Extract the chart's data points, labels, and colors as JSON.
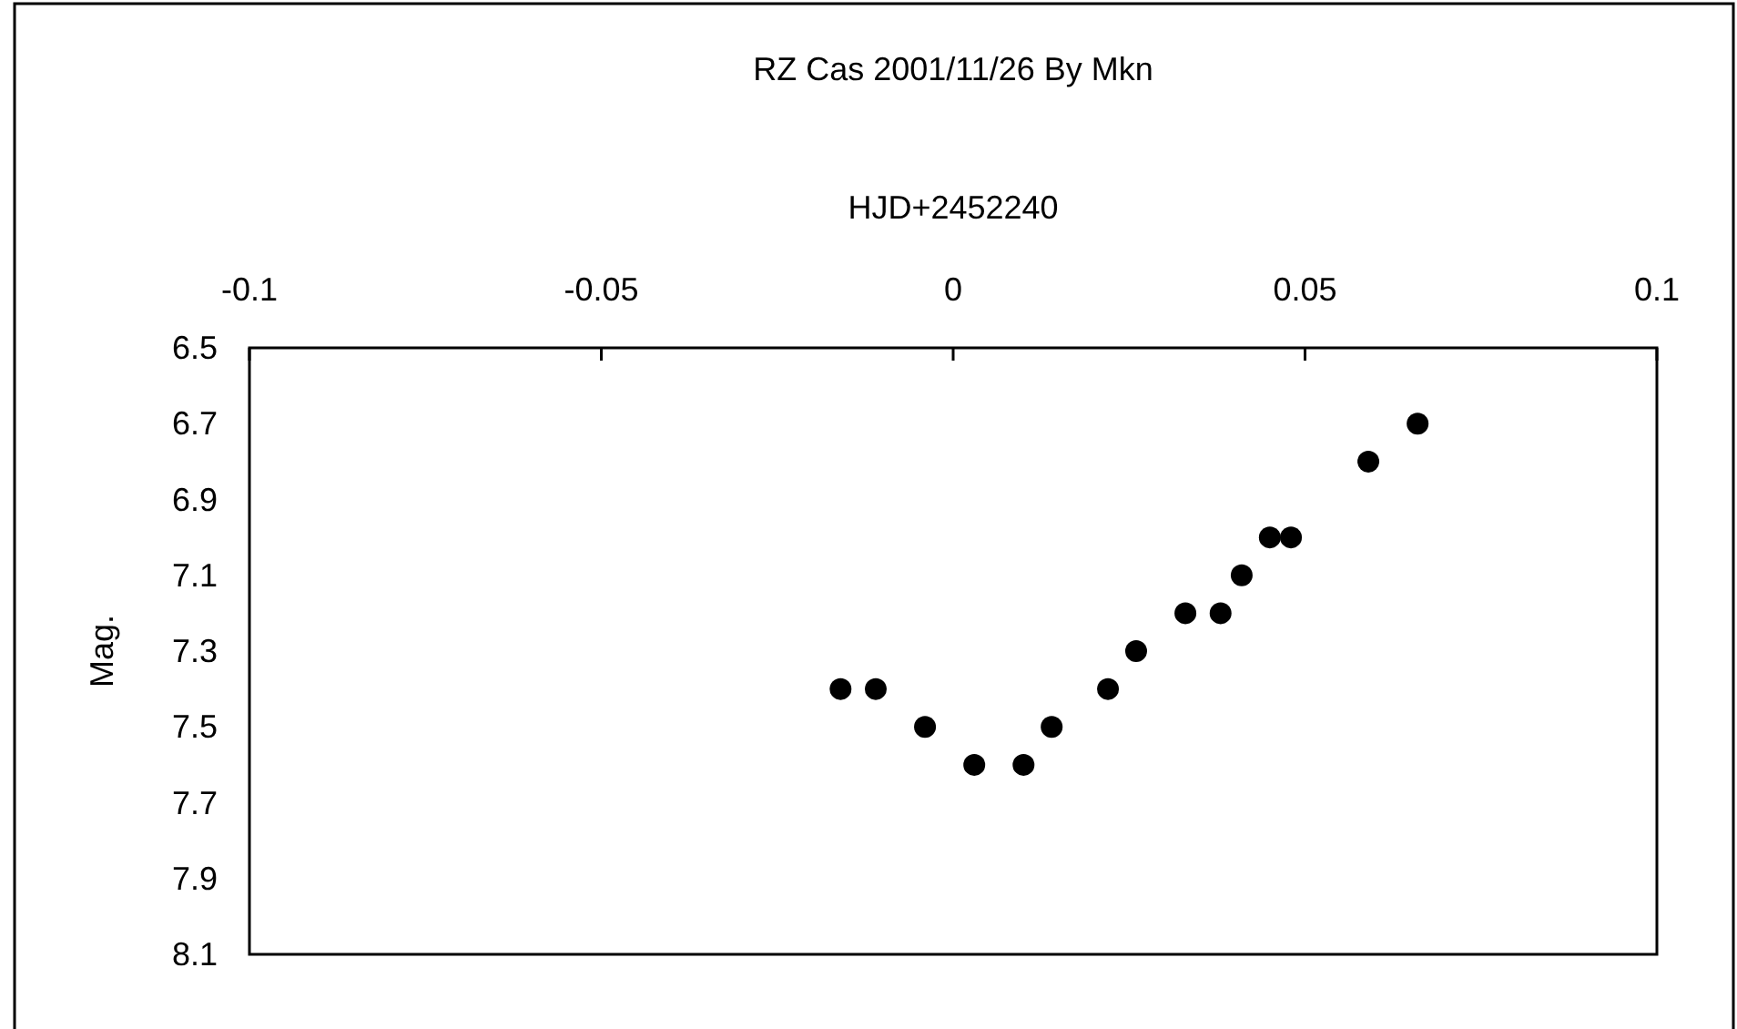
{
  "chart_data": {
    "type": "scatter",
    "title": "RZ Cas 2001/11/26 By Mkn",
    "xlabel": "HJD+2452240",
    "ylabel": "Mag.",
    "x": [
      -0.016,
      -0.011,
      -0.004,
      0.003,
      0.01,
      0.014,
      0.022,
      0.026,
      0.033,
      0.038,
      0.041,
      0.045,
      0.048,
      0.059,
      0.066
    ],
    "series": [
      {
        "color": "#000000",
        "values": [
          7.4,
          7.4,
          7.5,
          7.6,
          7.6,
          7.5,
          7.4,
          7.3,
          7.2,
          7.2,
          7.1,
          7.0,
          7.0,
          6.8,
          6.7
        ]
      }
    ],
    "xlim": [
      -0.1,
      0.1
    ],
    "xticks": [
      -0.1,
      -0.05,
      0,
      0.05,
      0.1
    ],
    "ylim": [
      8.1,
      6.5
    ],
    "yticks": [
      6.5,
      6.7,
      6.9,
      7.1,
      7.3,
      7.5,
      7.7,
      7.9,
      8.1
    ],
    "grid": false,
    "marker": "circle"
  }
}
